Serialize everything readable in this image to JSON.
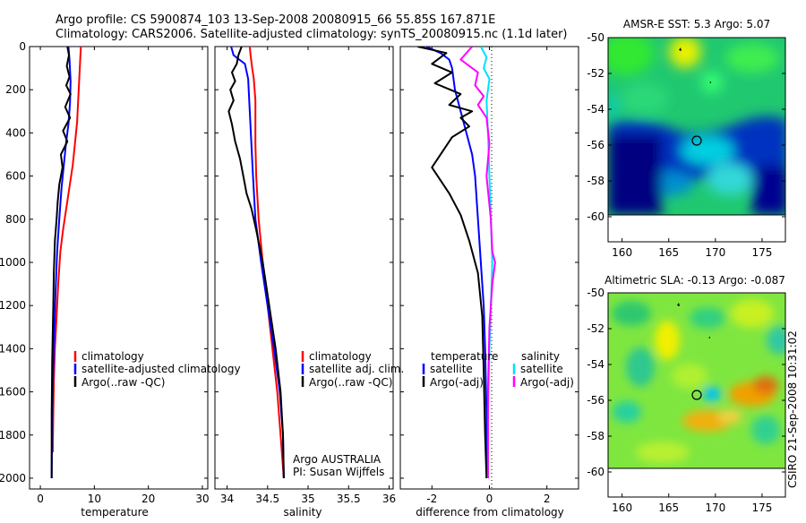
{
  "title_line1": "Argo profile: CS 5900874_103 13-Sep-2008 20080915_66 55.85S 167.871E",
  "title_line2": "Climatology: CARS2006. Satellite-adjusted climatology: synTS_20080915.nc (1.1d later)",
  "side_label": "CSIRO 21-Sep-2008 10:31:02",
  "chart_data": [
    {
      "type": "line",
      "xlabel": "temperature",
      "xlim": [
        -2,
        31
      ],
      "xticks": [
        "0",
        "10",
        "20",
        "30"
      ],
      "ylim": [
        2050,
        0
      ],
      "yticks": [
        "0",
        "200",
        "400",
        "600",
        "800",
        "1000",
        "1200",
        "1400",
        "1600",
        "1800",
        "2000"
      ],
      "legend": [
        "climatology",
        "satellite-adjusted climatology",
        "Argo(..raw -QC)"
      ],
      "series": [
        {
          "name": "climatology",
          "color": "#ff0000",
          "x": [
            7.5,
            7.4,
            7.2,
            7.0,
            6.8,
            6.4,
            6.0,
            5.4,
            4.8,
            4.2,
            3.7,
            3.3,
            3.0,
            2.7,
            2.5,
            2.4,
            2.3
          ],
          "y": [
            0,
            50,
            150,
            250,
            350,
            450,
            550,
            650,
            750,
            850,
            950,
            1100,
            1250,
            1400,
            1550,
            1700,
            1880
          ]
        },
        {
          "name": "satellite-adjusted climatology",
          "color": "#0000ff",
          "x": [
            5.2,
            5.4,
            5.6,
            5.5,
            5.2,
            4.7,
            4.3,
            3.9,
            3.5,
            3.1,
            2.8,
            2.5,
            2.2,
            2.1
          ],
          "y": [
            0,
            60,
            160,
            260,
            360,
            460,
            560,
            660,
            800,
            950,
            1150,
            1400,
            1700,
            2000
          ]
        },
        {
          "name": "Argo(..raw -QC)",
          "color": "#000000",
          "x": [
            5.0,
            5.3,
            4.9,
            5.4,
            4.8,
            5.6,
            4.6,
            5.5,
            4.2,
            5.0,
            3.8,
            4.1,
            3.5,
            3.2,
            3.0,
            2.7,
            2.5,
            2.4,
            2.2,
            2.1,
            2.1
          ],
          "y": [
            0,
            40,
            90,
            140,
            180,
            220,
            280,
            330,
            390,
            440,
            500,
            560,
            640,
            720,
            800,
            900,
            1050,
            1200,
            1450,
            1700,
            2000
          ]
        }
      ]
    },
    {
      "type": "line",
      "xlabel": "salinity",
      "xlim": [
        33.85,
        36.05
      ],
      "xticks": [
        "34",
        "34.5",
        "35",
        "35.5",
        "36"
      ],
      "ylim": [
        2050,
        0
      ],
      "legend": [
        "climatology",
        "satellite adj. clim.",
        "Argo(..raw -QC)"
      ],
      "annotations": [
        "Argo AUSTRALIA",
        "PI: Susan Wijffels"
      ],
      "series": [
        {
          "name": "climatology",
          "color": "#ff0000",
          "x": [
            34.28,
            34.29,
            34.31,
            34.33,
            34.34,
            34.35,
            34.35,
            34.35,
            34.36,
            34.39,
            34.44,
            34.5,
            34.56,
            34.62,
            34.66,
            34.69,
            34.7
          ],
          "y": [
            0,
            40,
            100,
            150,
            200,
            250,
            300,
            450,
            600,
            800,
            1000,
            1200,
            1400,
            1600,
            1800,
            1950,
            2000
          ]
        },
        {
          "name": "satellite adj. clim.",
          "color": "#0000ff",
          "x": [
            34.05,
            34.08,
            34.15,
            34.22,
            34.26,
            34.28,
            34.3,
            34.32,
            34.35,
            34.42,
            34.5,
            34.58,
            34.65,
            34.69,
            34.7
          ],
          "y": [
            0,
            40,
            60,
            80,
            150,
            300,
            450,
            600,
            800,
            1000,
            1200,
            1400,
            1600,
            1800,
            2000
          ]
        },
        {
          "name": "Argo(..raw -QC)",
          "color": "#000000",
          "x": [
            34.18,
            34.14,
            34.12,
            34.06,
            34.1,
            34.04,
            34.08,
            34.02,
            34.06,
            34.1,
            34.16,
            34.2,
            34.24,
            34.3,
            34.36,
            34.44,
            34.52,
            34.6,
            34.66,
            34.69,
            34.7
          ],
          "y": [
            0,
            40,
            80,
            120,
            160,
            200,
            250,
            300,
            360,
            440,
            520,
            600,
            680,
            750,
            850,
            1000,
            1200,
            1400,
            1600,
            1800,
            2000
          ]
        }
      ]
    },
    {
      "type": "line",
      "xlabel": "difference from climatology",
      "xlim": [
        -3.1,
        3.1
      ],
      "xticks": [
        "-2",
        "0",
        "2"
      ],
      "ylim": [
        2050,
        0
      ],
      "legend_temperature": {
        "title": "temperature",
        "items": [
          "satellite",
          "Argo(-adj)"
        ]
      },
      "legend_salinity": {
        "title": "salinity",
        "items": [
          "satellite",
          "Argo(-adj)"
        ]
      },
      "series": [
        {
          "name": "temperature satellite",
          "color": "#0000ff",
          "x": [
            -2.2,
            -1.7,
            -1.4,
            -1.3,
            -1.2,
            -1.0,
            -0.8,
            -0.6,
            -0.5,
            -0.4,
            -0.3,
            -0.2,
            -0.15,
            -0.1,
            -0.1
          ],
          "y": [
            0,
            30,
            60,
            100,
            200,
            300,
            400,
            500,
            600,
            800,
            1000,
            1200,
            1400,
            1700,
            2000
          ]
        },
        {
          "name": "temperature Argo(-adj)",
          "color": "#000000",
          "x": [
            -2.5,
            -1.5,
            -2.0,
            -1.3,
            -1.9,
            -1.0,
            -1.4,
            -0.6,
            -1.0,
            -0.7,
            -1.3,
            -2.0,
            -1.4,
            -1.0,
            -0.7,
            -0.4,
            -0.25,
            -0.2,
            -0.15,
            -0.1
          ],
          "y": [
            0,
            30,
            80,
            120,
            170,
            220,
            270,
            300,
            330,
            370,
            420,
            560,
            680,
            780,
            900,
            1050,
            1250,
            1500,
            1800,
            2000
          ]
        },
        {
          "name": "salinity satellite",
          "color": "#00e0ff",
          "x": [
            -0.3,
            -0.1,
            -0.2,
            0.0,
            -0.1,
            -0.05,
            0.0,
            0.05,
            0.1,
            0.05,
            0.0,
            -0.05,
            -0.05
          ],
          "y": [
            0,
            50,
            100,
            150,
            250,
            400,
            600,
            800,
            1000,
            1200,
            1400,
            1700,
            2000
          ]
        },
        {
          "name": "salinity Argo(-adj)",
          "color": "#ff00ff",
          "x": [
            -0.6,
            -1.0,
            -0.4,
            -0.5,
            -0.2,
            -0.4,
            -0.1,
            0.0,
            -0.1,
            0.05,
            0.1,
            0.2,
            0.1,
            0.0,
            -0.05,
            -0.05
          ],
          "y": [
            0,
            60,
            120,
            180,
            230,
            270,
            330,
            450,
            600,
            800,
            950,
            1000,
            1100,
            1300,
            1600,
            2000
          ]
        }
      ]
    },
    {
      "type": "heatmap",
      "title": "AMSR-E SST: 5.3 Argo: 5.07",
      "xlim": [
        158.5,
        177.5
      ],
      "ylim": [
        -61.4,
        -50
      ],
      "xticks": [
        "160",
        "165",
        "170",
        "175"
      ],
      "yticks": [
        "-50",
        "-52",
        "-54",
        "-56",
        "-58",
        "-60"
      ],
      "marker": {
        "lon": 167.87,
        "lat": -55.85
      }
    },
    {
      "type": "heatmap",
      "title": "Altimetric SLA: -0.13 Argo: -0.087",
      "xlim": [
        158.5,
        177.5
      ],
      "ylim": [
        -61.4,
        -50
      ],
      "xticks": [
        "160",
        "165",
        "170",
        "175"
      ],
      "yticks": [
        "-50",
        "-52",
        "-54",
        "-56",
        "-58",
        "-60"
      ],
      "marker": {
        "lon": 167.87,
        "lat": -55.85
      }
    }
  ]
}
